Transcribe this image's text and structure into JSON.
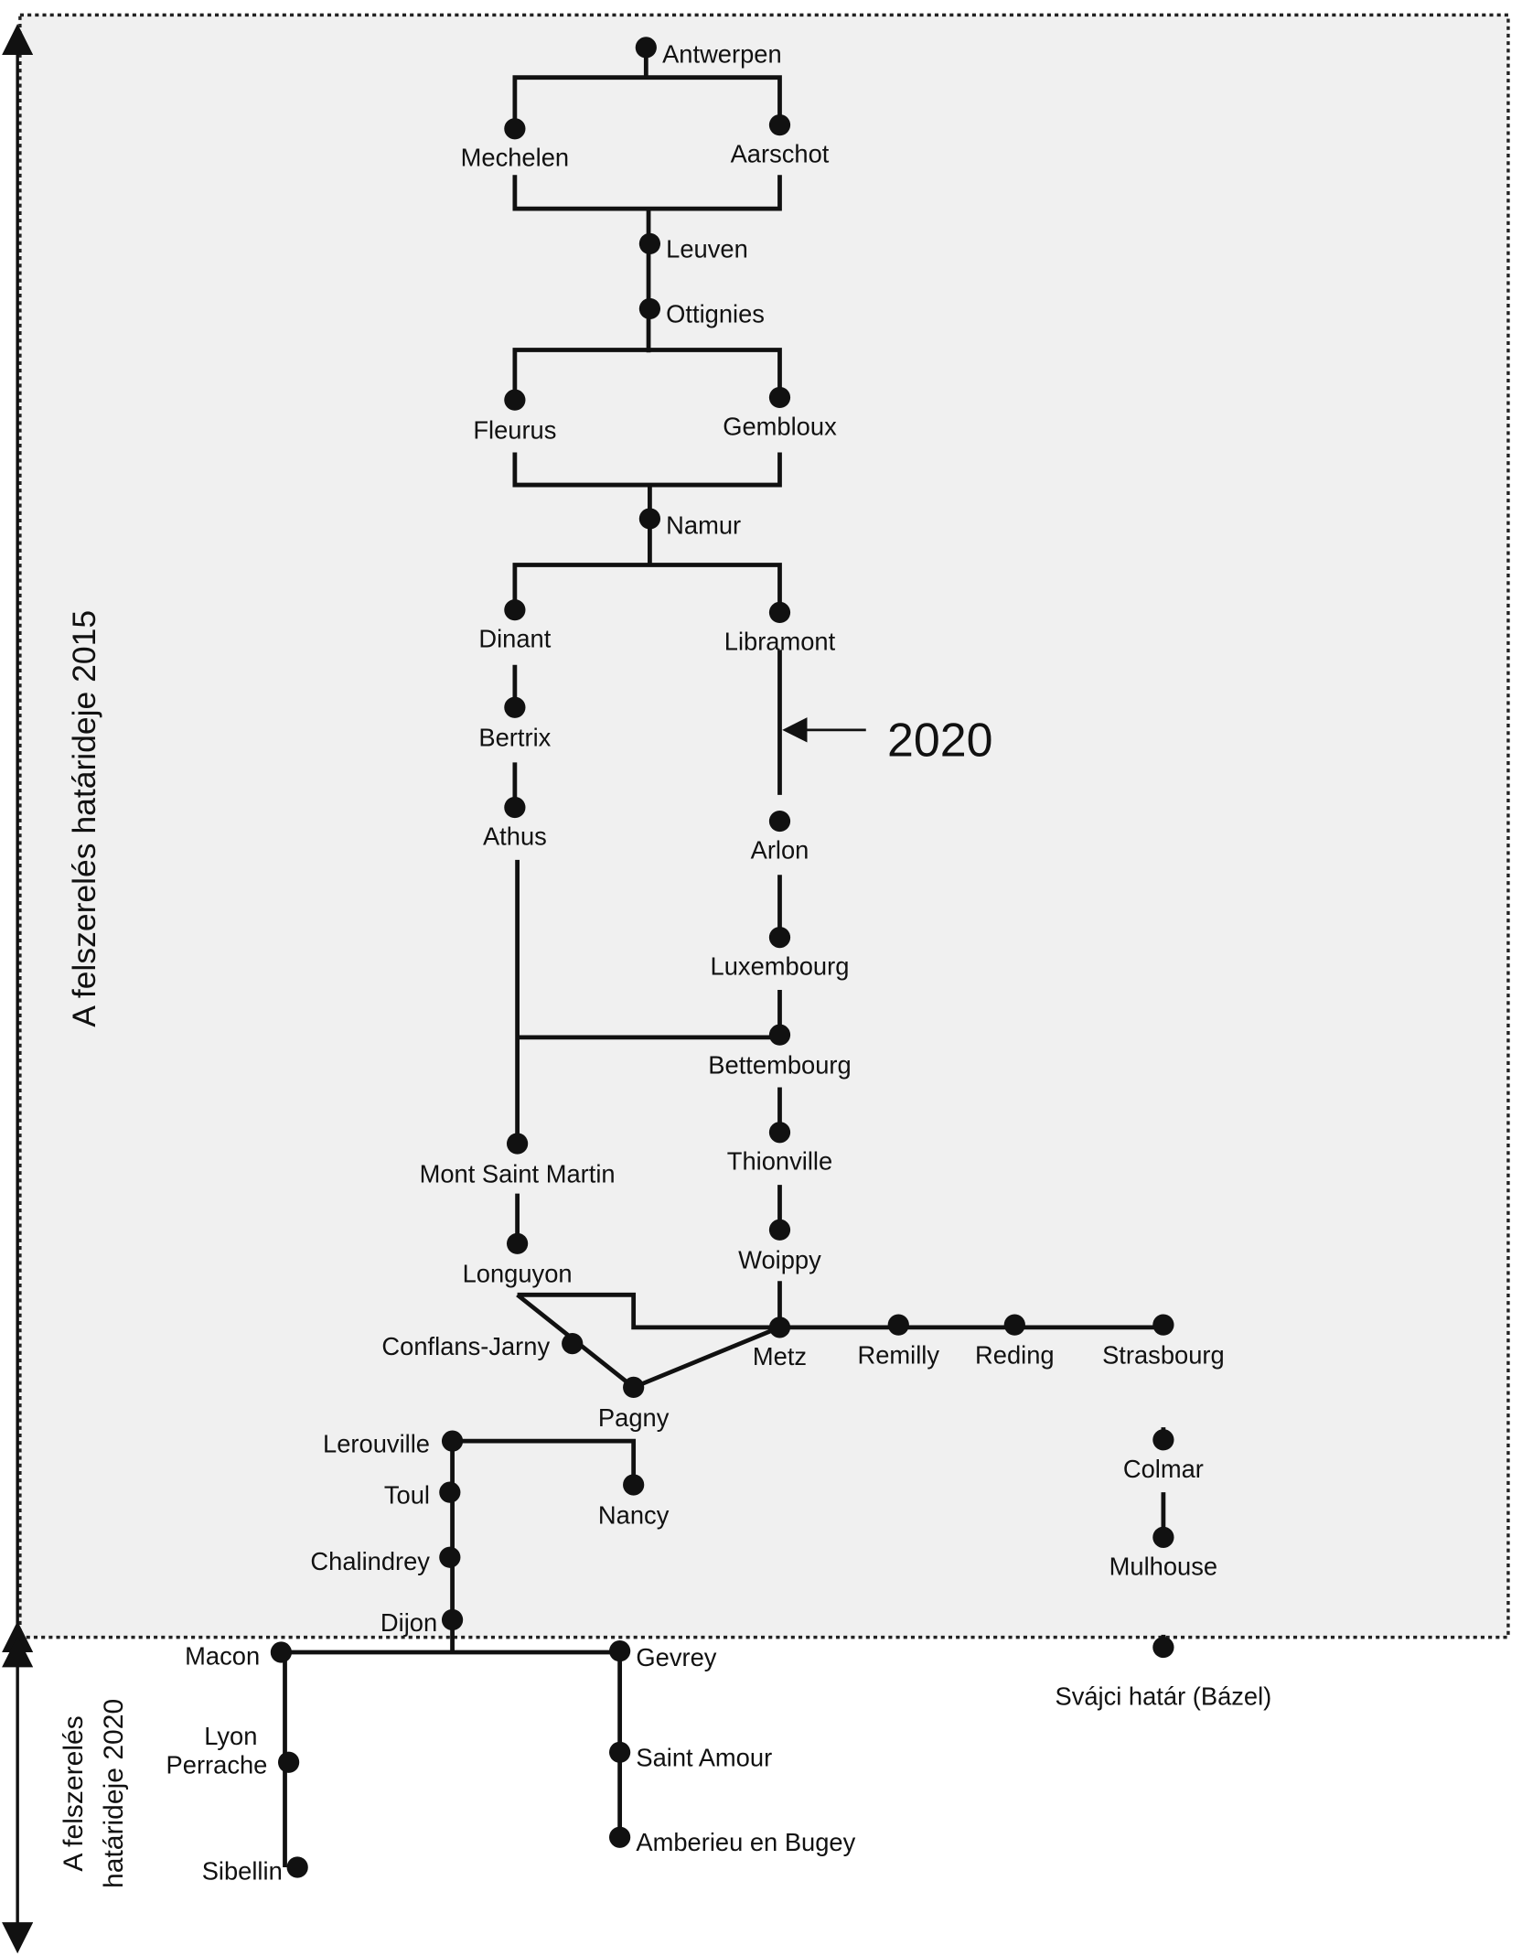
{
  "left_labels": {
    "top": "A felszerelés határideje 2015",
    "bottom": [
      "A felszerelés",
      "határideje 2020"
    ]
  },
  "annotation": "2020",
  "stations": [
    {
      "label": "Antwerpen"
    },
    {
      "label": "Mechelen"
    },
    {
      "label": "Aarschot"
    },
    {
      "label": "Leuven"
    },
    {
      "label": "Ottignies"
    },
    {
      "label": "Fleurus"
    },
    {
      "label": "Gembloux"
    },
    {
      "label": "Namur"
    },
    {
      "label": "Dinant"
    },
    {
      "label": "Libramont"
    },
    {
      "label": "Bertrix"
    },
    {
      "label": "Athus"
    },
    {
      "label": "Arlon"
    },
    {
      "label": "Luxembourg"
    },
    {
      "label": "Bettembourg"
    },
    {
      "label": "Mont Saint Martin"
    },
    {
      "label": "Thionville"
    },
    {
      "label": "Longuyon"
    },
    {
      "label": "Woippy"
    },
    {
      "label": "Conflans-Jarny"
    },
    {
      "label": "Metz"
    },
    {
      "label": "Remilly"
    },
    {
      "label": "Reding"
    },
    {
      "label": "Strasbourg"
    },
    {
      "label": "Pagny"
    },
    {
      "label": "Lerouville"
    },
    {
      "label": "Toul"
    },
    {
      "label": "Nancy"
    },
    {
      "label": "Colmar"
    },
    {
      "label": "Chalindrey"
    },
    {
      "label": "Mulhouse"
    },
    {
      "label": "Dijon"
    },
    {
      "label": "Macon"
    },
    {
      "label": "Gevrey"
    },
    {
      "label": "Svájci határ (Bázel)"
    },
    {
      "label": [
        "Lyon",
        "Perrache"
      ]
    },
    {
      "label": "Saint Amour"
    },
    {
      "label": "Sibellin"
    },
    {
      "label": "Amberieu en Bugey"
    }
  ]
}
